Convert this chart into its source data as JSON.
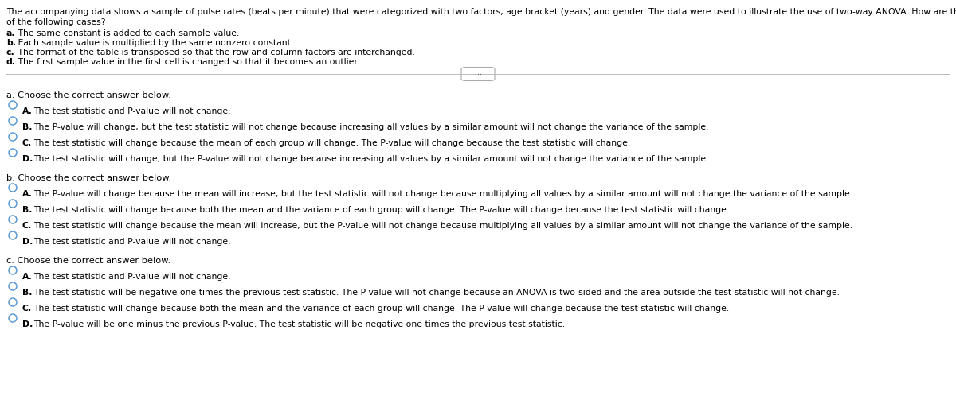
{
  "bg_color": "#ffffff",
  "header_line1": "The accompanying data shows a sample of pulse rates (beats per minute) that were categorized with two factors, age bracket (years) and gender. The data were used to illustrate the use of two-way ANOVA. How are the results affected in each",
  "header_line2": "of the following cases?",
  "intro_lines": [
    [
      "a.",
      " The same constant is added to each sample value."
    ],
    [
      "b.",
      " Each sample value is multiplied by the same nonzero constant."
    ],
    [
      "c.",
      " The format of the table is transposed so that the row and column factors are interchanged."
    ],
    [
      "d.",
      " The first sample value in the first cell is changed so that it becomes an outlier."
    ]
  ],
  "section_a_header": "a. Choose the correct answer below.",
  "section_a_options": [
    [
      "A.",
      "  The test statistic and P-value will not change."
    ],
    [
      "B.",
      "  The P-value will change, but the test statistic will not change because increasing all values by a similar amount will not change the variance of the sample."
    ],
    [
      "C.",
      "  The test statistic will change because the mean of each group will change. The P-value will change because the test statistic will change."
    ],
    [
      "D.",
      "  The test statistic will change, but the P-value will not change because increasing all values by a similar amount will not change the variance of the sample."
    ]
  ],
  "section_b_header": "b. Choose the correct answer below.",
  "section_b_options": [
    [
      "A.",
      "  The P-value will change because the mean will increase, but the test statistic will not change because multiplying all values by a similar amount will not change the variance of the sample."
    ],
    [
      "B.",
      "  The test statistic will change because both the mean and the variance of each group will change. The P-value will change because the test statistic will change."
    ],
    [
      "C.",
      "  The test statistic will change because the mean will increase, but the P-value will not change because multiplying all values by a similar amount will not change the variance of the sample."
    ],
    [
      "D.",
      "  The test statistic and P-value will not change."
    ]
  ],
  "section_c_header": "c. Choose the correct answer below.",
  "section_c_options": [
    [
      "A.",
      "  The test statistic and P-value will not change."
    ],
    [
      "B.",
      "  The test statistic will be negative one times the previous test statistic. The P-value will not change because an ANOVA is two-sided and the area outside the test statistic will not change."
    ],
    [
      "C.",
      "  The test statistic will change because both the mean and the variance of each group will change. The P-value will change because the test statistic will change."
    ],
    [
      "D.",
      "  The P-value will be one minus the previous P-value. The test statistic will be negative one times the previous test statistic."
    ]
  ],
  "circle_color": "#5b9bd5",
  "text_color": "#000000",
  "header_fontsize": 7.8,
  "intro_fontsize": 7.8,
  "option_fontsize": 7.8,
  "section_header_fontsize": 8.2
}
